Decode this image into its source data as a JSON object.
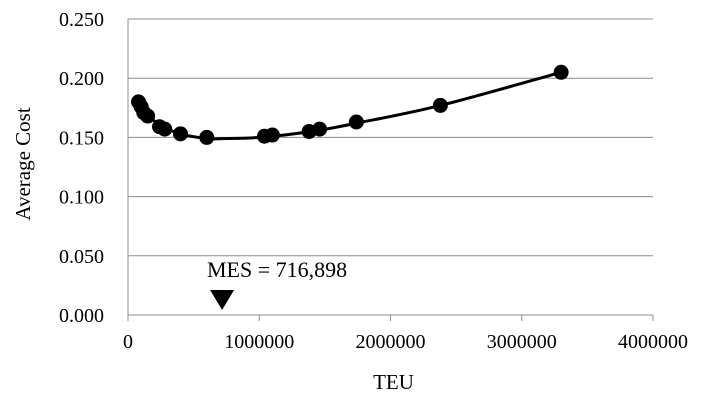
{
  "chart_data": {
    "type": "scatter",
    "title": "",
    "xlabel": "TEU",
    "ylabel": "Average Cost",
    "xlim": [
      0,
      4000000
    ],
    "ylim": [
      0,
      0.25
    ],
    "x_ticks": [
      "0",
      "1000000",
      "2000000",
      "3000000",
      "4000000"
    ],
    "y_ticks": [
      "0.000",
      "0.050",
      "0.100",
      "0.150",
      "0.200",
      "0.250"
    ],
    "grid": "horizontal",
    "legend": "none",
    "series": [
      {
        "points": [
          {
            "x": 80000,
            "y": 0.18
          },
          {
            "x": 100000,
            "y": 0.176
          },
          {
            "x": 120000,
            "y": 0.171
          },
          {
            "x": 150000,
            "y": 0.168
          },
          {
            "x": 240000,
            "y": 0.159
          },
          {
            "x": 280000,
            "y": 0.157
          },
          {
            "x": 400000,
            "y": 0.153
          },
          {
            "x": 600000,
            "y": 0.15
          },
          {
            "x": 1040000,
            "y": 0.151
          },
          {
            "x": 1100000,
            "y": 0.152
          },
          {
            "x": 1380000,
            "y": 0.155
          },
          {
            "x": 1460000,
            "y": 0.157
          },
          {
            "x": 1740000,
            "y": 0.163
          },
          {
            "x": 2380000,
            "y": 0.177
          },
          {
            "x": 3300000,
            "y": 0.205
          }
        ],
        "fit_curve": [
          {
            "x": 80000,
            "y": 0.179
          },
          {
            "x": 150000,
            "y": 0.169
          },
          {
            "x": 250000,
            "y": 0.16
          },
          {
            "x": 400000,
            "y": 0.153
          },
          {
            "x": 600000,
            "y": 0.149
          },
          {
            "x": 716898,
            "y": 0.149
          },
          {
            "x": 1000000,
            "y": 0.15
          },
          {
            "x": 1400000,
            "y": 0.155
          },
          {
            "x": 1740000,
            "y": 0.162
          },
          {
            "x": 2380000,
            "y": 0.177
          },
          {
            "x": 3300000,
            "y": 0.205
          }
        ]
      }
    ],
    "annotation": {
      "text": "MES = 716,898",
      "x": 716898
    }
  }
}
